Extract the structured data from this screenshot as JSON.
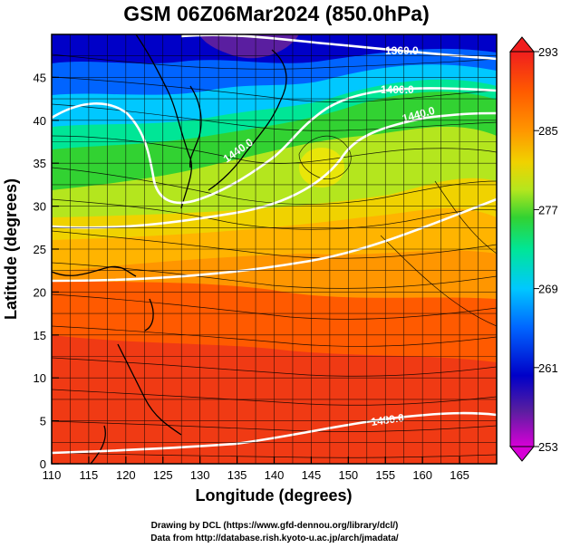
{
  "title": "GSM 06Z06Mar2024 (850.0hPa)",
  "x_axis": {
    "label": "Longitude (degrees)",
    "range": [
      110,
      170
    ],
    "ticks": [
      "110",
      "115",
      "120",
      "125",
      "130",
      "135",
      "140",
      "145",
      "150",
      "155",
      "160",
      "165"
    ]
  },
  "y_axis": {
    "label": "Latitude  (degrees)",
    "range": [
      0,
      50
    ],
    "ticks": [
      "0",
      "5",
      "10",
      "15",
      "20",
      "25",
      "30",
      "35",
      "40",
      "45"
    ]
  },
  "colorbar": {
    "range": [
      253,
      293
    ],
    "labels": [
      "293",
      "285",
      "277",
      "269",
      "261",
      "253"
    ],
    "colors": [
      "#d700d7",
      "#5a1ea0",
      "#0000c8",
      "#0064ff",
      "#00c8ff",
      "#00e696",
      "#32d232",
      "#b4e61e",
      "#f0d200",
      "#ff9600",
      "#ff5a00",
      "#f01e1e"
    ]
  },
  "contours": [
    {
      "label": "1360.0"
    },
    {
      "label": "1400.0"
    },
    {
      "label": "1440.0"
    },
    {
      "label": "1440.0"
    },
    {
      "label": "1480.0"
    }
  ],
  "credits": {
    "line1": "Drawing by DCL (https://www.gfd-dennou.org/library/dcl/)",
    "line2": "Data from http://database.rish.kyoto-u.ac.jp/arch/jmadata/"
  }
}
